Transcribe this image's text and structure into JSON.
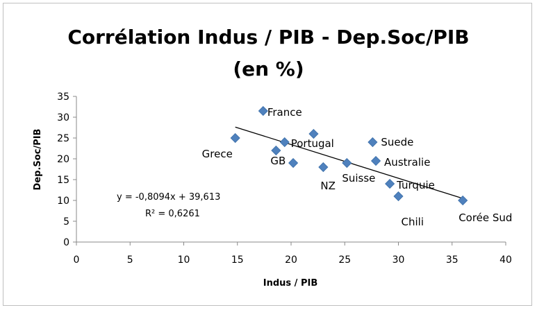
{
  "chart_data": {
    "type": "scatter",
    "title": "Corrélation Indus / PIB - Dep.Soc/PIB",
    "subtitle": "(en %)",
    "xlabel": "Indus / PIB",
    "ylabel": "Dep.Soc/PIB",
    "xlim": [
      0,
      40
    ],
    "ylim": [
      0,
      35
    ],
    "x_ticks": [
      0,
      5,
      10,
      15,
      20,
      25,
      30,
      35,
      40
    ],
    "y_ticks": [
      0,
      5,
      10,
      15,
      20,
      25,
      30,
      35
    ],
    "grid": false,
    "marker_color": "#4f81bd",
    "points": [
      {
        "x": 14.8,
        "y": 25.0,
        "label": "Grece"
      },
      {
        "x": 17.4,
        "y": 31.5,
        "label": "France"
      },
      {
        "x": 18.6,
        "y": 22.0,
        "label": "GB"
      },
      {
        "x": 19.4,
        "y": 24.0,
        "label": "Portugal"
      },
      {
        "x": 20.2,
        "y": 19.0,
        "label": ""
      },
      {
        "x": 22.1,
        "y": 26.0,
        "label": ""
      },
      {
        "x": 23.0,
        "y": 18.0,
        "label": "NZ"
      },
      {
        "x": 25.2,
        "y": 19.0,
        "label": "Suisse"
      },
      {
        "x": 27.6,
        "y": 24.0,
        "label": "Suede"
      },
      {
        "x": 27.9,
        "y": 19.5,
        "label": "Australie"
      },
      {
        "x": 29.2,
        "y": 14.0,
        "label": "Turquie"
      },
      {
        "x": 30.0,
        "y": 11.0,
        "label": "Chili"
      },
      {
        "x": 36.0,
        "y": 10.0,
        "label": "Corée Sud"
      }
    ],
    "trendline": {
      "type": "linear",
      "slope": -0.8094,
      "intercept": 39.613,
      "x_range": [
        14.8,
        36.0
      ],
      "equation_text": "y = -0,8094x + 39,613",
      "r2_text": "R² = 0,6261"
    }
  }
}
